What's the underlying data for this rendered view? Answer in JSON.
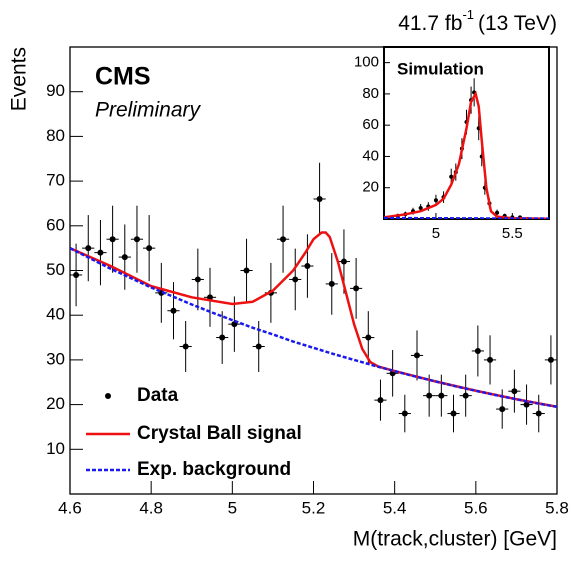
{
  "chart_data": [
    {
      "type": "errorbar",
      "lumi": "41.7 fb",
      "lumi_exponent": "-1",
      "energy": "(13 TeV)",
      "experiment": "CMS",
      "status": "Preliminary",
      "y_label": "Events",
      "x_label": "M(track,cluster) [GeV]",
      "xlim": [
        4.6,
        5.8
      ],
      "ylim": [
        0,
        100
      ],
      "xticks": [
        4.6,
        4.8,
        5,
        5.2,
        5.4,
        5.6,
        5.8
      ],
      "yticks": [
        10,
        20,
        30,
        40,
        50,
        60,
        70,
        80,
        90
      ],
      "legend": "lower left",
      "series": [
        {
          "name": "Data",
          "style": "points",
          "color": "#000000",
          "bin_width": 0.03,
          "x": [
            4.615,
            4.645,
            4.675,
            4.705,
            4.735,
            4.765,
            4.795,
            4.825,
            4.855,
            4.885,
            4.915,
            4.945,
            4.975,
            5.005,
            5.035,
            5.065,
            5.095,
            5.125,
            5.155,
            5.185,
            5.215,
            5.245,
            5.275,
            5.305,
            5.335,
            5.365,
            5.395,
            5.425,
            5.455,
            5.485,
            5.515,
            5.545,
            5.575,
            5.605,
            5.635,
            5.665,
            5.695,
            5.725,
            5.755,
            5.785
          ],
          "values": [
            49,
            55,
            54,
            57,
            53,
            57,
            55,
            45,
            41,
            33,
            48,
            44,
            35,
            38,
            50,
            33,
            45,
            57,
            48,
            51,
            66,
            47,
            52,
            46,
            35,
            21,
            27,
            18,
            31,
            22,
            22,
            18,
            22,
            32,
            30,
            19,
            23,
            20,
            18,
            30
          ],
          "errors": [
            7,
            7.4,
            7.3,
            7.5,
            7.3,
            7.5,
            7.4,
            6.7,
            6.4,
            5.7,
            6.9,
            6.6,
            5.9,
            6.2,
            7.1,
            5.7,
            6.7,
            7.5,
            6.9,
            7.1,
            8.1,
            6.9,
            7.2,
            6.8,
            5.9,
            4.6,
            5.2,
            4.2,
            5.6,
            4.7,
            4.7,
            4.2,
            4.7,
            5.7,
            5.5,
            4.4,
            4.8,
            4.5,
            4.2,
            5.5
          ]
        },
        {
          "name": "Crystal Ball signal",
          "style": "line",
          "color": "#ee1111",
          "x": [
            4.6,
            4.7,
            4.8,
            4.9,
            5.0,
            5.05,
            5.1,
            5.15,
            5.18,
            5.2,
            5.22,
            5.23,
            5.24,
            5.26,
            5.28,
            5.3,
            5.32,
            5.34,
            5.36,
            5.4,
            5.5,
            5.6,
            5.7,
            5.8
          ],
          "values": [
            55,
            51,
            46.5,
            44,
            42.5,
            43,
            45.5,
            50,
            54,
            57,
            58.5,
            58.5,
            57.5,
            52,
            45,
            38,
            32.5,
            29.5,
            28.5,
            27.5,
            25.2,
            23.1,
            21.2,
            19.5
          ]
        },
        {
          "name": "Exp. background",
          "style": "dashed",
          "color": "#1a1aee",
          "x": [
            4.6,
            4.65,
            4.7,
            4.75,
            4.8,
            4.85,
            4.9,
            4.95,
            5.0,
            5.05,
            5.1,
            5.15,
            5.2,
            5.25,
            5.3,
            5.35,
            5.4,
            5.45,
            5.5,
            5.55,
            5.6,
            5.65,
            5.7,
            5.75,
            5.8
          ],
          "values": [
            55,
            52.7,
            50.4,
            48.3,
            46.2,
            44.3,
            42.4,
            40.6,
            38.9,
            37.2,
            35.7,
            34.1,
            32.7,
            31.3,
            30,
            28.7,
            27.5,
            26.3,
            25.2,
            24.1,
            23.1,
            22.1,
            21.2,
            20.3,
            19.5
          ]
        }
      ]
    },
    {
      "type": "errorbar",
      "label": "Simulation",
      "xlim": [
        4.66,
        5.74
      ],
      "ylim": [
        0,
        110
      ],
      "xticks": [
        5,
        5.5
      ],
      "yticks": [
        20,
        40,
        60,
        80,
        100
      ],
      "series": [
        {
          "style": "points",
          "color": "#000000",
          "bin_width": 0.025,
          "x": [
            4.75,
            4.8,
            4.85,
            4.9,
            4.95,
            5.0,
            5.05,
            5.1,
            5.13,
            5.17,
            5.2,
            5.23,
            5.25,
            5.28,
            5.3,
            5.32,
            5.35,
            5.4,
            5.45,
            5.5,
            5.55,
            5.6
          ],
          "values": [
            2,
            3,
            5,
            7,
            8,
            12,
            14,
            27,
            30,
            45,
            62,
            76,
            81,
            58,
            40,
            20,
            10,
            4,
            2,
            1,
            1,
            0
          ],
          "errors": [
            1.4,
            1.7,
            2.2,
            2.6,
            2.8,
            3.5,
            3.7,
            5.2,
            5.5,
            6.7,
            7.9,
            8.7,
            9,
            7.6,
            6.3,
            4.5,
            3.2,
            2,
            1.4,
            1,
            1,
            0
          ]
        },
        {
          "style": "line",
          "color": "#ee1111",
          "x": [
            4.66,
            4.8,
            4.9,
            5.0,
            5.05,
            5.1,
            5.15,
            5.2,
            5.23,
            5.26,
            5.28,
            5.3,
            5.33,
            5.36,
            5.4,
            5.5,
            5.74
          ],
          "values": [
            1,
            3,
            5,
            9,
            13,
            22,
            35,
            58,
            75,
            80,
            72,
            50,
            20,
            5,
            1.5,
            0.5,
            0.2
          ]
        },
        {
          "style": "dashed",
          "color": "#1a1aee",
          "x": [
            4.66,
            5.74
          ],
          "values": [
            0.6,
            0.2
          ]
        }
      ]
    }
  ]
}
